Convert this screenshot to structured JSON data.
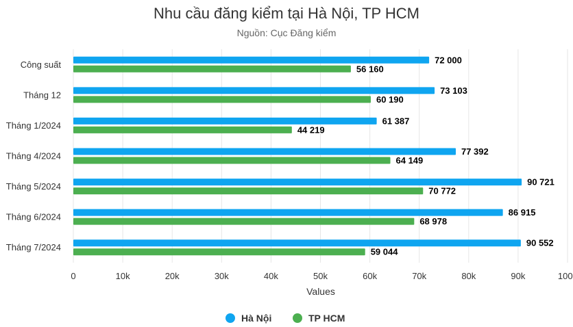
{
  "chart_data": {
    "type": "bar",
    "orientation": "horizontal",
    "title": "Nhu cầu đăng kiểm tại Hà Nội, TP HCM",
    "subtitle": "Nguồn: Cục Đăng kiểm",
    "xlabel": "Values",
    "categories": [
      "Công suất",
      "Tháng 12",
      "Tháng 1/2024",
      "Tháng 4/2024",
      "Tháng 5/2024",
      "Tháng 6/2024",
      "Tháng 7/2024"
    ],
    "series": [
      {
        "name": "Hà Nội",
        "color": "#0fa5f0",
        "values": [
          72000,
          73103,
          61387,
          77392,
          90721,
          86915,
          90552
        ],
        "labels": [
          "72 000",
          "73 103",
          "61 387",
          "77 392",
          "90 721",
          "86 915",
          "90 552"
        ]
      },
      {
        "name": "TP HCM",
        "color": "#4caf50",
        "values": [
          56160,
          60190,
          44219,
          64149,
          70772,
          68978,
          59044
        ],
        "labels": [
          "56 160",
          "60 190",
          "44 219",
          "64 149",
          "70 772",
          "68 978",
          "59 044"
        ]
      }
    ],
    "xlim": [
      0,
      100000
    ],
    "ticks": [
      0,
      10000,
      20000,
      30000,
      40000,
      50000,
      60000,
      70000,
      80000,
      90000,
      100000
    ],
    "tick_labels": [
      "0",
      "10k",
      "20k",
      "30k",
      "40k",
      "50k",
      "60k",
      "70k",
      "80k",
      "90k",
      "100k"
    ],
    "grid": true,
    "legend": "bottom-center"
  }
}
